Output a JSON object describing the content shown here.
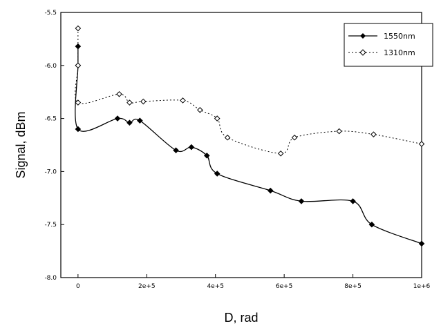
{
  "chart_data": {
    "type": "line",
    "xlabel": "D, rad",
    "ylabel": "Signal, dBm",
    "xlim": [
      -0.5,
      10
    ],
    "ylim": [
      -8.0,
      -5.5
    ],
    "x_ticks": [
      0,
      2,
      4,
      6,
      8,
      10
    ],
    "x_tick_labels": [
      "0",
      "2e+5",
      "4e+5",
      "6e+5",
      "8e+5",
      "1e+6"
    ],
    "y_ticks": [
      -5.5,
      -6.0,
      -6.5,
      -7.0,
      -7.5,
      -8.0
    ],
    "y_tick_labels": [
      "-5.5",
      "-6.0",
      "-6.5",
      "-7.0",
      "-7.5",
      "-8.0"
    ],
    "grid": false,
    "legend_position": "top-right",
    "series": [
      {
        "name": "1550nm",
        "color": "#000000",
        "marker": "filled-diamond",
        "line": "solid",
        "x": [
          0,
          0,
          0,
          1.15,
          1.5,
          1.8,
          2.85,
          3.3,
          3.75,
          4.05,
          5.6,
          6.5,
          8.0,
          8.55,
          10.0
        ],
        "y": [
          -5.82,
          -6.0,
          -6.6,
          -6.5,
          -6.54,
          -6.52,
          -6.8,
          -6.77,
          -6.85,
          -7.02,
          -7.18,
          -7.28,
          -7.28,
          -7.5,
          -7.68
        ]
      },
      {
        "name": "1310nm",
        "color": "#000000",
        "marker": "open-diamond",
        "line": "dotted",
        "x": [
          0,
          0,
          0,
          1.2,
          1.5,
          1.9,
          3.05,
          3.55,
          4.05,
          4.35,
          5.9,
          6.3,
          7.6,
          8.6,
          10.0
        ],
        "y": [
          -5.65,
          -6.0,
          -6.35,
          -6.27,
          -6.35,
          -6.34,
          -6.33,
          -6.42,
          -6.5,
          -6.68,
          -6.83,
          -6.68,
          -6.62,
          -6.65,
          -6.74
        ]
      }
    ]
  }
}
